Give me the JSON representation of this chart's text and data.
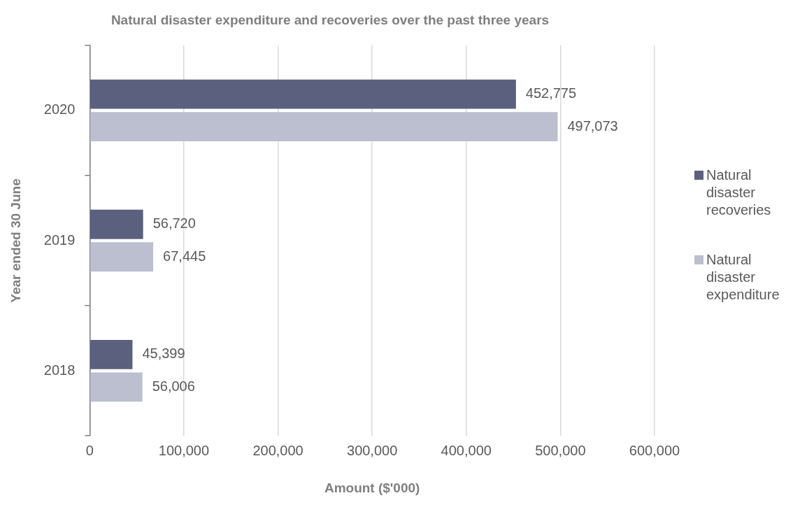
{
  "chart_data": {
    "type": "bar",
    "orientation": "horizontal",
    "title": "Natural disaster expenditure and recoveries over the past three years",
    "xlabel": "Amount ($'000)",
    "ylabel": "Year ended 30 June",
    "categories": [
      "2020",
      "2019",
      "2018"
    ],
    "series": [
      {
        "name": "Natural disaster recoveries",
        "color": "#5a607e",
        "values": [
          452775,
          56720,
          45399
        ],
        "value_labels": [
          "452,775",
          "56,720",
          "45,399"
        ]
      },
      {
        "name": "Natural disaster expenditure",
        "color": "#bbbfcf",
        "values": [
          497073,
          67445,
          56006
        ],
        "value_labels": [
          "497,073",
          "67,445",
          "56,006"
        ]
      }
    ],
    "xlim": [
      0,
      600000
    ],
    "xticks": [
      {
        "value": 0,
        "label": "0"
      },
      {
        "value": 100000,
        "label": "100,000"
      },
      {
        "value": 200000,
        "label": "200,000"
      },
      {
        "value": 300000,
        "label": "300,000"
      },
      {
        "value": 400000,
        "label": "400,000"
      },
      {
        "value": 500000,
        "label": "500,000"
      },
      {
        "value": 600000,
        "label": "600,000"
      }
    ],
    "grid": "x",
    "legend": "right"
  }
}
